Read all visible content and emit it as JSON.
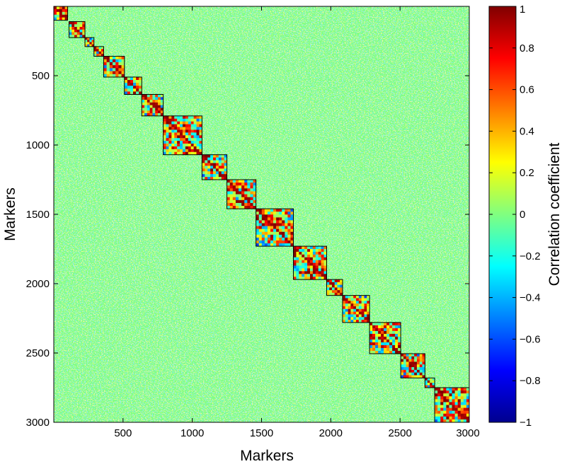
{
  "chart_data": {
    "type": "heatmap",
    "title": "",
    "xlabel": "Markers",
    "ylabel": "Markers",
    "xlim": [
      0,
      3000
    ],
    "ylim": [
      0,
      3000
    ],
    "y_reversed": true,
    "x_ticks": [
      500,
      1000,
      1500,
      2000,
      2500,
      3000
    ],
    "y_ticks": [
      500,
      1000,
      1500,
      2000,
      2500,
      3000
    ],
    "background_value": 0,
    "blocks": [
      {
        "start": 0,
        "end": 100,
        "mean": 0.6
      },
      {
        "start": 110,
        "end": 225,
        "mean": 0.35
      },
      {
        "start": 225,
        "end": 290,
        "mean": 0.3
      },
      {
        "start": 290,
        "end": 360,
        "mean": 0.3
      },
      {
        "start": 360,
        "end": 510,
        "mean": 0.35
      },
      {
        "start": 510,
        "end": 635,
        "mean": 0.35
      },
      {
        "start": 635,
        "end": 790,
        "mean": 0.35
      },
      {
        "start": 790,
        "end": 1070,
        "mean": 0.45
      },
      {
        "start": 1070,
        "end": 1250,
        "mean": 0.4
      },
      {
        "start": 1250,
        "end": 1460,
        "mean": 0.4
      },
      {
        "start": 1460,
        "end": 1730,
        "mean": 0.45
      },
      {
        "start": 1730,
        "end": 1970,
        "mean": 0.45
      },
      {
        "start": 1970,
        "end": 2085,
        "mean": 0.35
      },
      {
        "start": 2085,
        "end": 2280,
        "mean": 0.4
      },
      {
        "start": 2280,
        "end": 2505,
        "mean": 0.4
      },
      {
        "start": 2505,
        "end": 2680,
        "mean": 0.45
      },
      {
        "start": 2680,
        "end": 2750,
        "mean": 0.35
      },
      {
        "start": 2750,
        "end": 3000,
        "mean": 0.45
      }
    ],
    "colorbar": {
      "label": "Correlation coefficient",
      "min": -1,
      "max": 1,
      "colormap": "jet",
      "ticks": [
        1,
        0.8,
        0.6,
        0.4,
        0.2,
        0,
        -0.2,
        -0.4,
        -0.6,
        -0.8,
        -1
      ],
      "tick_labels": [
        "1",
        "0.8",
        "0.6",
        "0.4",
        "0.2",
        "0",
        "−0.2",
        "−0.4",
        "−0.6",
        "−0.8",
        "−1"
      ]
    },
    "background_color": "#80ff80"
  }
}
